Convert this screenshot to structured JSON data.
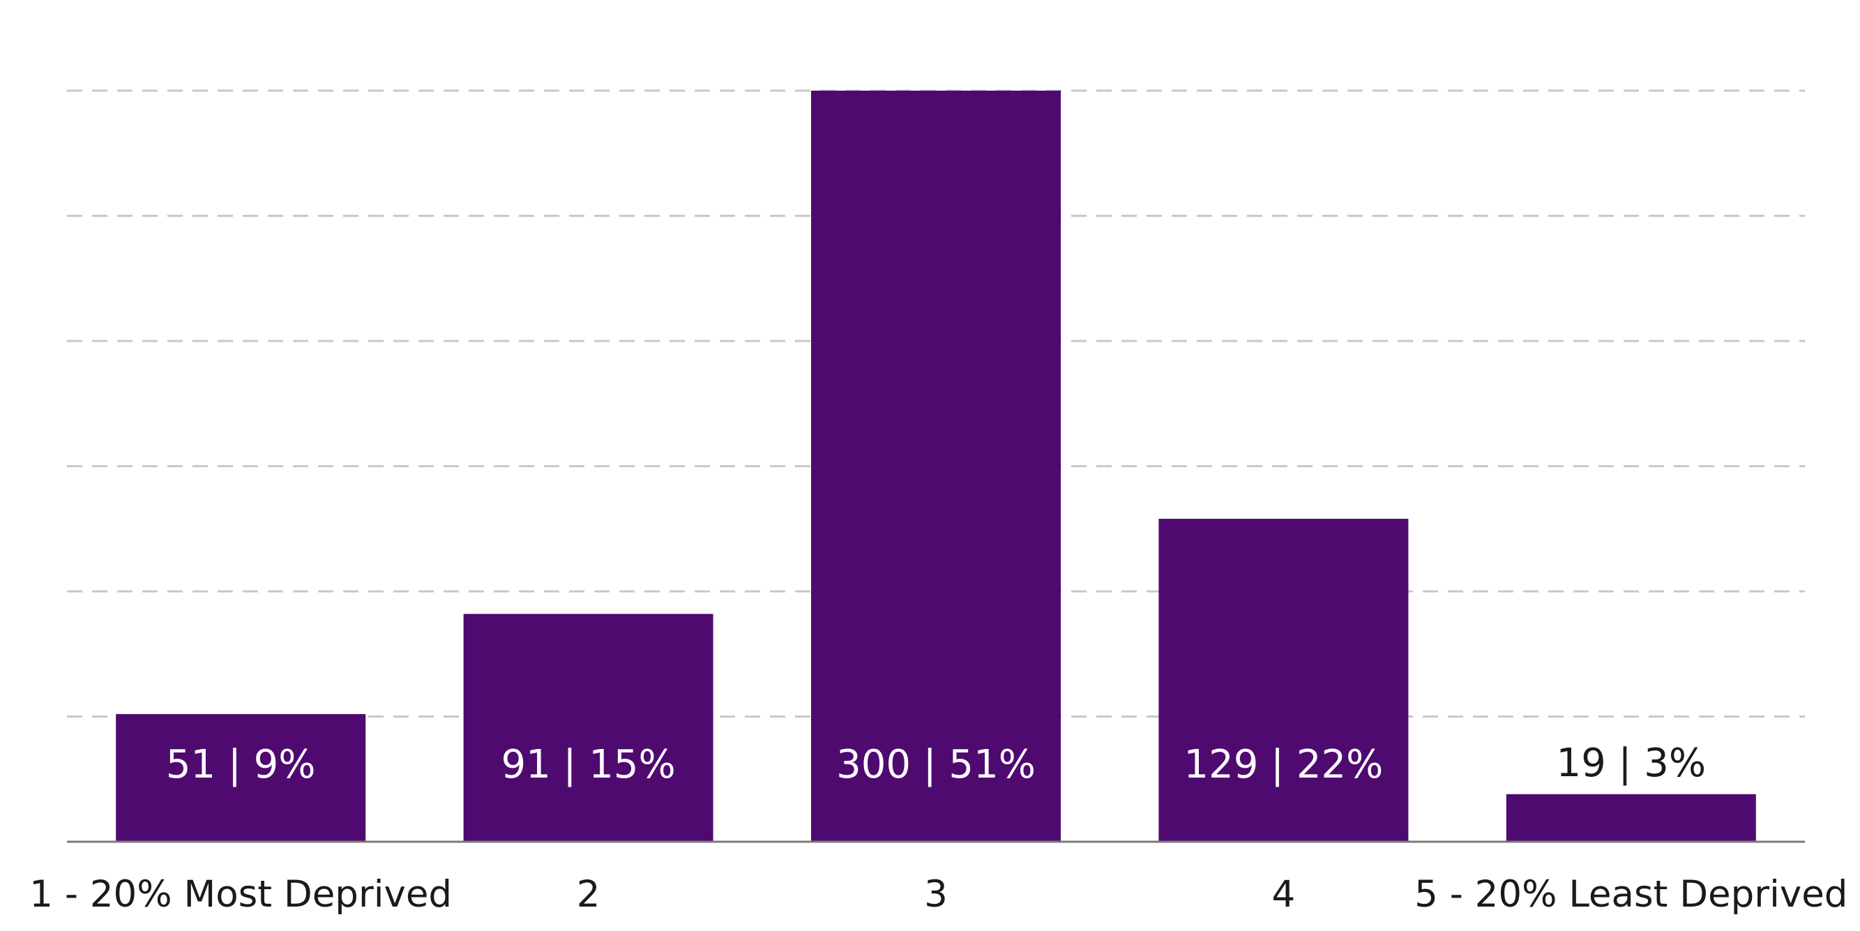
{
  "chart_data": {
    "type": "bar",
    "categories": [
      "1 - 20% Most Deprived",
      "2",
      "3",
      "4",
      "5 - 20% Least Deprived"
    ],
    "values": [
      51,
      91,
      300,
      129,
      19
    ],
    "data_labels": [
      "51 | 9%",
      "91 | 15%",
      "300 | 51%",
      "129 | 22%",
      "19 | 3%"
    ],
    "title": "",
    "xlabel": "",
    "ylabel": "",
    "ylim": [
      0,
      300
    ],
    "grid": true,
    "legend": "none",
    "colors": {
      "bar": "#4f0a70",
      "grid": "#c8c8c8",
      "axis": "#7a7a7a",
      "label_inside": "#ffffff",
      "label_outside": "#1a1a1a"
    }
  }
}
